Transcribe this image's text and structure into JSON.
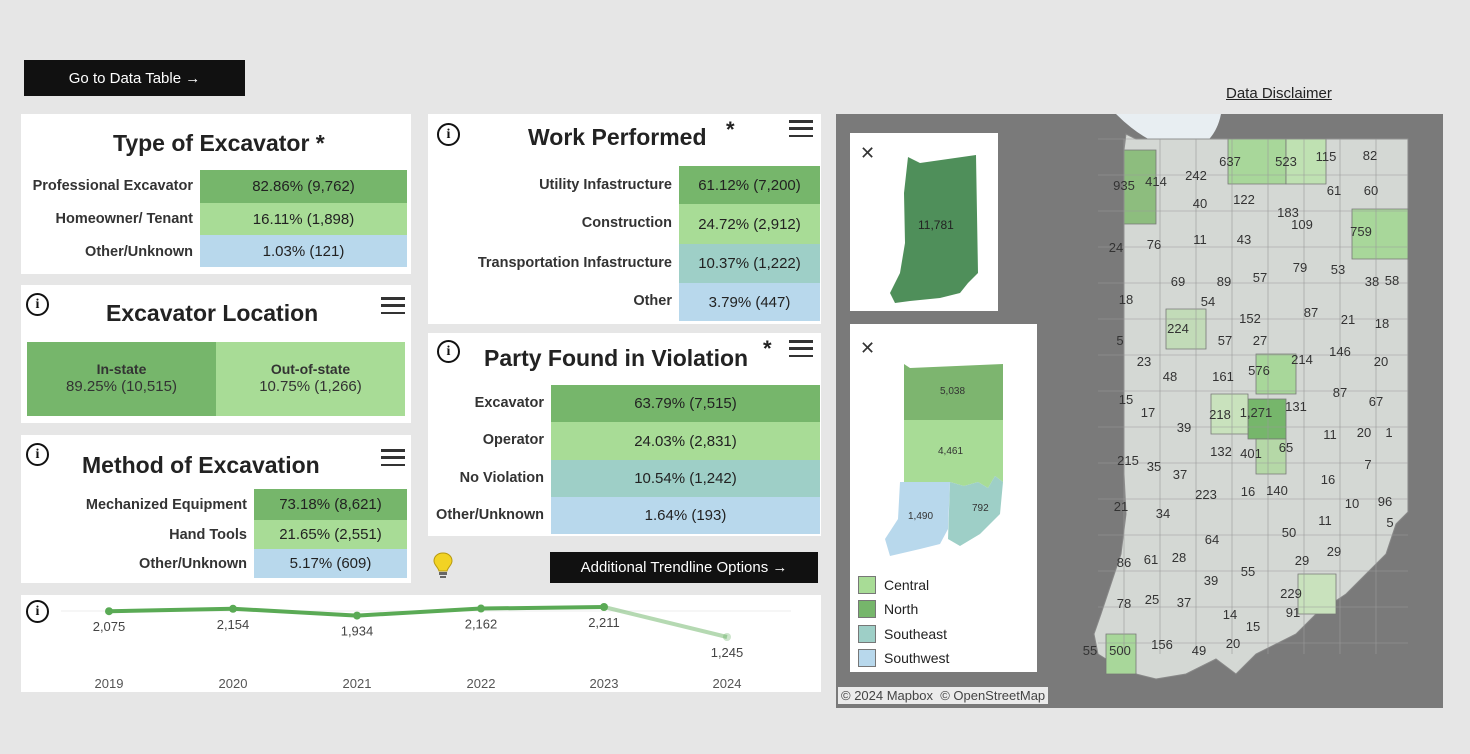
{
  "buttons": {
    "data_table": "Go to Data Table →",
    "trendline": "Additional Trendline Options →"
  },
  "disclaimer": "Data Disclaimer",
  "info_glyph": "i",
  "excavator_type": {
    "title": "Type of Excavator *",
    "rows": [
      {
        "label": "Professional Excavator",
        "value": "82.86% (9,762)"
      },
      {
        "label": "Homeowner/ Tenant",
        "value": "16.11% (1,898)"
      },
      {
        "label": "Other/Unknown",
        "value": "1.03% (121)"
      }
    ]
  },
  "excavator_location": {
    "title": "Excavator Location",
    "instate_label": "In-state",
    "instate_value": "89.25% (10,515)",
    "outstate_label": "Out-of-state",
    "outstate_value": "10.75% (1,266)"
  },
  "method": {
    "title": "Method of Excavation",
    "rows": [
      {
        "label": "Mechanized Equipment",
        "value": "73.18% (8,621)"
      },
      {
        "label": "Hand Tools",
        "value": "21.65% (2,551)"
      },
      {
        "label": "Other/Unknown",
        "value": "5.17% (609)"
      }
    ]
  },
  "work": {
    "title": "Work Performed",
    "asterisk": "*",
    "rows": [
      {
        "label": "Utility Infastructure",
        "value": "61.12% (7,200)"
      },
      {
        "label": "Construction",
        "value": "24.72% (2,912)"
      },
      {
        "label": "Transportation Infastructure",
        "value": "10.37% (1,222)"
      },
      {
        "label": "Other",
        "value": "3.79% (447)"
      }
    ]
  },
  "party": {
    "title": "Party Found in Violation",
    "asterisk": "*",
    "rows": [
      {
        "label": "Excavator",
        "value": "63.79% (7,515)"
      },
      {
        "label": "Operator",
        "value": "24.03% (2,831)"
      },
      {
        "label": "No Violation",
        "value": "10.54% (1,242)"
      },
      {
        "label": "Other/Unknown",
        "value": "1.64% (193)"
      }
    ]
  },
  "trend": {
    "years": [
      "2019",
      "2020",
      "2021",
      "2022",
      "2023",
      "2024"
    ],
    "labels": [
      "2,075",
      "2,154",
      "1,934",
      "2,162",
      "2,211",
      "1,245"
    ],
    "values": [
      2075,
      2154,
      1934,
      2162,
      2211,
      1245
    ],
    "color": "#5aaa55"
  },
  "state_total": "11,781",
  "close_glyph": "✕",
  "regions": {
    "north": "5,038",
    "central": "4,461",
    "southwest": "1,490",
    "southeast": "792"
  },
  "legend": [
    {
      "label": "Central",
      "color": "#a8dc96"
    },
    {
      "label": "North",
      "color": "#76b66b"
    },
    {
      "label": "Southeast",
      "color": "#9ecfc7"
    },
    {
      "label": "Southwest",
      "color": "#b8d8ec"
    }
  ],
  "attribution": "© 2024 Mapbox  © OpenStreetMap",
  "county_values": [
    "935",
    "414",
    "242",
    "637",
    "523",
    "115",
    "82",
    "40",
    "122",
    "183",
    "61",
    "60",
    "24",
    "76",
    "11",
    "43",
    "109",
    "759",
    "69",
    "89",
    "57",
    "79",
    "53",
    "38",
    "58",
    "18",
    "54",
    "152",
    "87",
    "21",
    "18",
    "224",
    "57",
    "27",
    "214",
    "146",
    "5",
    "23",
    "48",
    "161",
    "576",
    "20",
    "87",
    "17",
    "39",
    "218",
    "1,271",
    "131",
    "67",
    "15",
    "132",
    "401",
    "65",
    "11",
    "20",
    "1",
    "215",
    "35",
    "37",
    "7",
    "16",
    "223",
    "16",
    "140",
    "21",
    "34",
    "10",
    "96",
    "5",
    "64",
    "50",
    "11",
    "86",
    "61",
    "28",
    "39",
    "55",
    "29",
    "29",
    "78",
    "25",
    "37",
    "14",
    "229",
    "91",
    "15",
    "55",
    "500",
    "156",
    "49",
    "20"
  ]
}
